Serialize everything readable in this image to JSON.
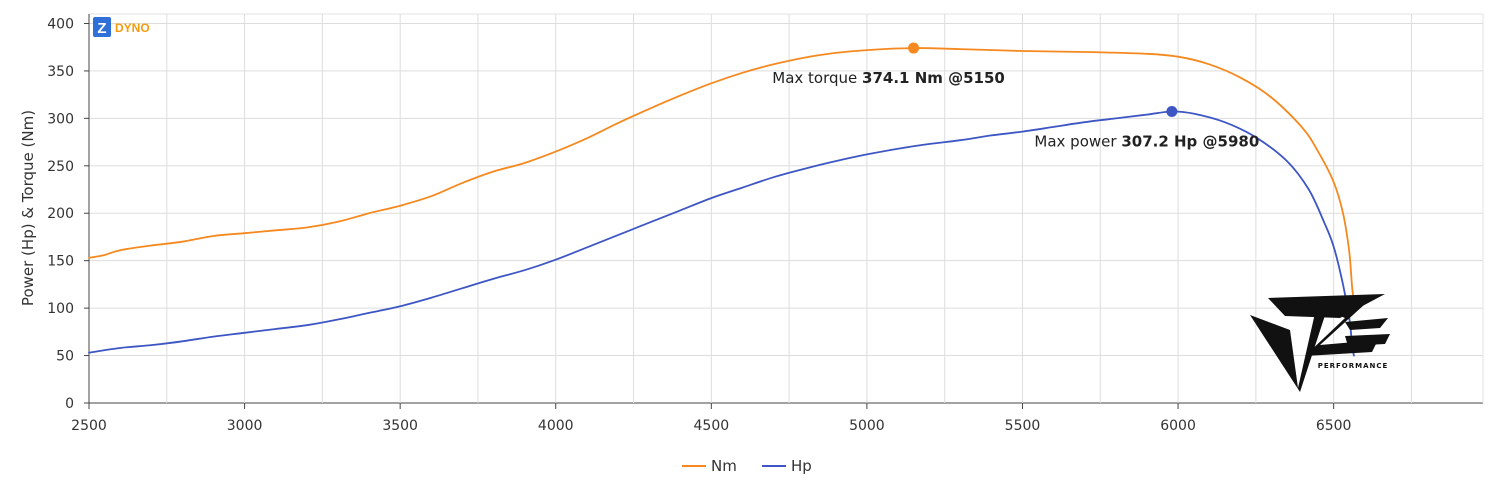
{
  "logo": {
    "letter": "Z",
    "text": "DYNO",
    "color": "#2e6fd8",
    "text_color": "#f39c12"
  },
  "watermark": {
    "text": "PERFORMANCE"
  },
  "chart_data": {
    "type": "line",
    "title": "",
    "xlabel": "",
    "ylabel": "Power (Hp) & Torque (Nm)",
    "xlim": [
      2500,
      6980
    ],
    "ylim": [
      0,
      410
    ],
    "x_ticks": [
      2500,
      3000,
      3500,
      4000,
      4500,
      5000,
      5500,
      6000,
      6500
    ],
    "y_ticks": [
      0,
      50,
      100,
      150,
      200,
      250,
      300,
      350,
      400
    ],
    "grid": true,
    "legend_position": "bottom-center",
    "series": [
      {
        "name": "Nm",
        "color": "#f5891f",
        "points": [
          [
            2500,
            153
          ],
          [
            2550,
            156
          ],
          [
            2600,
            161
          ],
          [
            2700,
            166
          ],
          [
            2800,
            170
          ],
          [
            2900,
            176
          ],
          [
            3000,
            179
          ],
          [
            3100,
            182
          ],
          [
            3200,
            185
          ],
          [
            3300,
            191
          ],
          [
            3400,
            200
          ],
          [
            3500,
            208
          ],
          [
            3600,
            218
          ],
          [
            3700,
            232
          ],
          [
            3800,
            244
          ],
          [
            3900,
            253
          ],
          [
            4000,
            265
          ],
          [
            4100,
            279
          ],
          [
            4200,
            295
          ],
          [
            4300,
            310
          ],
          [
            4400,
            324
          ],
          [
            4500,
            337
          ],
          [
            4600,
            348
          ],
          [
            4700,
            357
          ],
          [
            4800,
            364
          ],
          [
            4900,
            369
          ],
          [
            5000,
            372
          ],
          [
            5150,
            374.1
          ],
          [
            5300,
            373
          ],
          [
            5500,
            371
          ],
          [
            5700,
            370
          ],
          [
            5900,
            368
          ],
          [
            6000,
            365
          ],
          [
            6100,
            357
          ],
          [
            6200,
            343
          ],
          [
            6300,
            322
          ],
          [
            6400,
            290
          ],
          [
            6450,
            265
          ],
          [
            6500,
            233
          ],
          [
            6530,
            200
          ],
          [
            6550,
            160
          ],
          [
            6560,
            120
          ],
          [
            6570,
            100
          ]
        ]
      },
      {
        "name": "Hp",
        "color": "#3d56c4",
        "points": [
          [
            2500,
            53
          ],
          [
            2600,
            58
          ],
          [
            2700,
            61
          ],
          [
            2800,
            65
          ],
          [
            2900,
            70
          ],
          [
            3000,
            74
          ],
          [
            3100,
            78
          ],
          [
            3200,
            82
          ],
          [
            3300,
            88
          ],
          [
            3400,
            95
          ],
          [
            3500,
            102
          ],
          [
            3600,
            111
          ],
          [
            3700,
            121
          ],
          [
            3800,
            131
          ],
          [
            3900,
            140
          ],
          [
            4000,
            151
          ],
          [
            4100,
            164
          ],
          [
            4200,
            177
          ],
          [
            4300,
            190
          ],
          [
            4400,
            203
          ],
          [
            4500,
            216
          ],
          [
            4600,
            227
          ],
          [
            4700,
            238
          ],
          [
            4800,
            247
          ],
          [
            4900,
            255
          ],
          [
            5000,
            262
          ],
          [
            5100,
            268
          ],
          [
            5200,
            273
          ],
          [
            5300,
            277
          ],
          [
            5400,
            282
          ],
          [
            5500,
            286
          ],
          [
            5600,
            291
          ],
          [
            5700,
            296
          ],
          [
            5800,
            300
          ],
          [
            5900,
            304
          ],
          [
            5980,
            307.2
          ],
          [
            6050,
            305
          ],
          [
            6150,
            296
          ],
          [
            6250,
            280
          ],
          [
            6350,
            255
          ],
          [
            6420,
            225
          ],
          [
            6470,
            190
          ],
          [
            6500,
            165
          ],
          [
            6530,
            125
          ],
          [
            6550,
            90
          ],
          [
            6560,
            60
          ],
          [
            6565,
            50
          ]
        ]
      }
    ],
    "annotations": [
      {
        "series": "Nm",
        "x": 5150,
        "y": 374.1,
        "label": "Max torque",
        "value": "374.1 Nm @5150"
      },
      {
        "series": "Hp",
        "x": 5980,
        "y": 307.2,
        "label": "Max power",
        "value": "307.2 Hp @5980"
      }
    ]
  }
}
